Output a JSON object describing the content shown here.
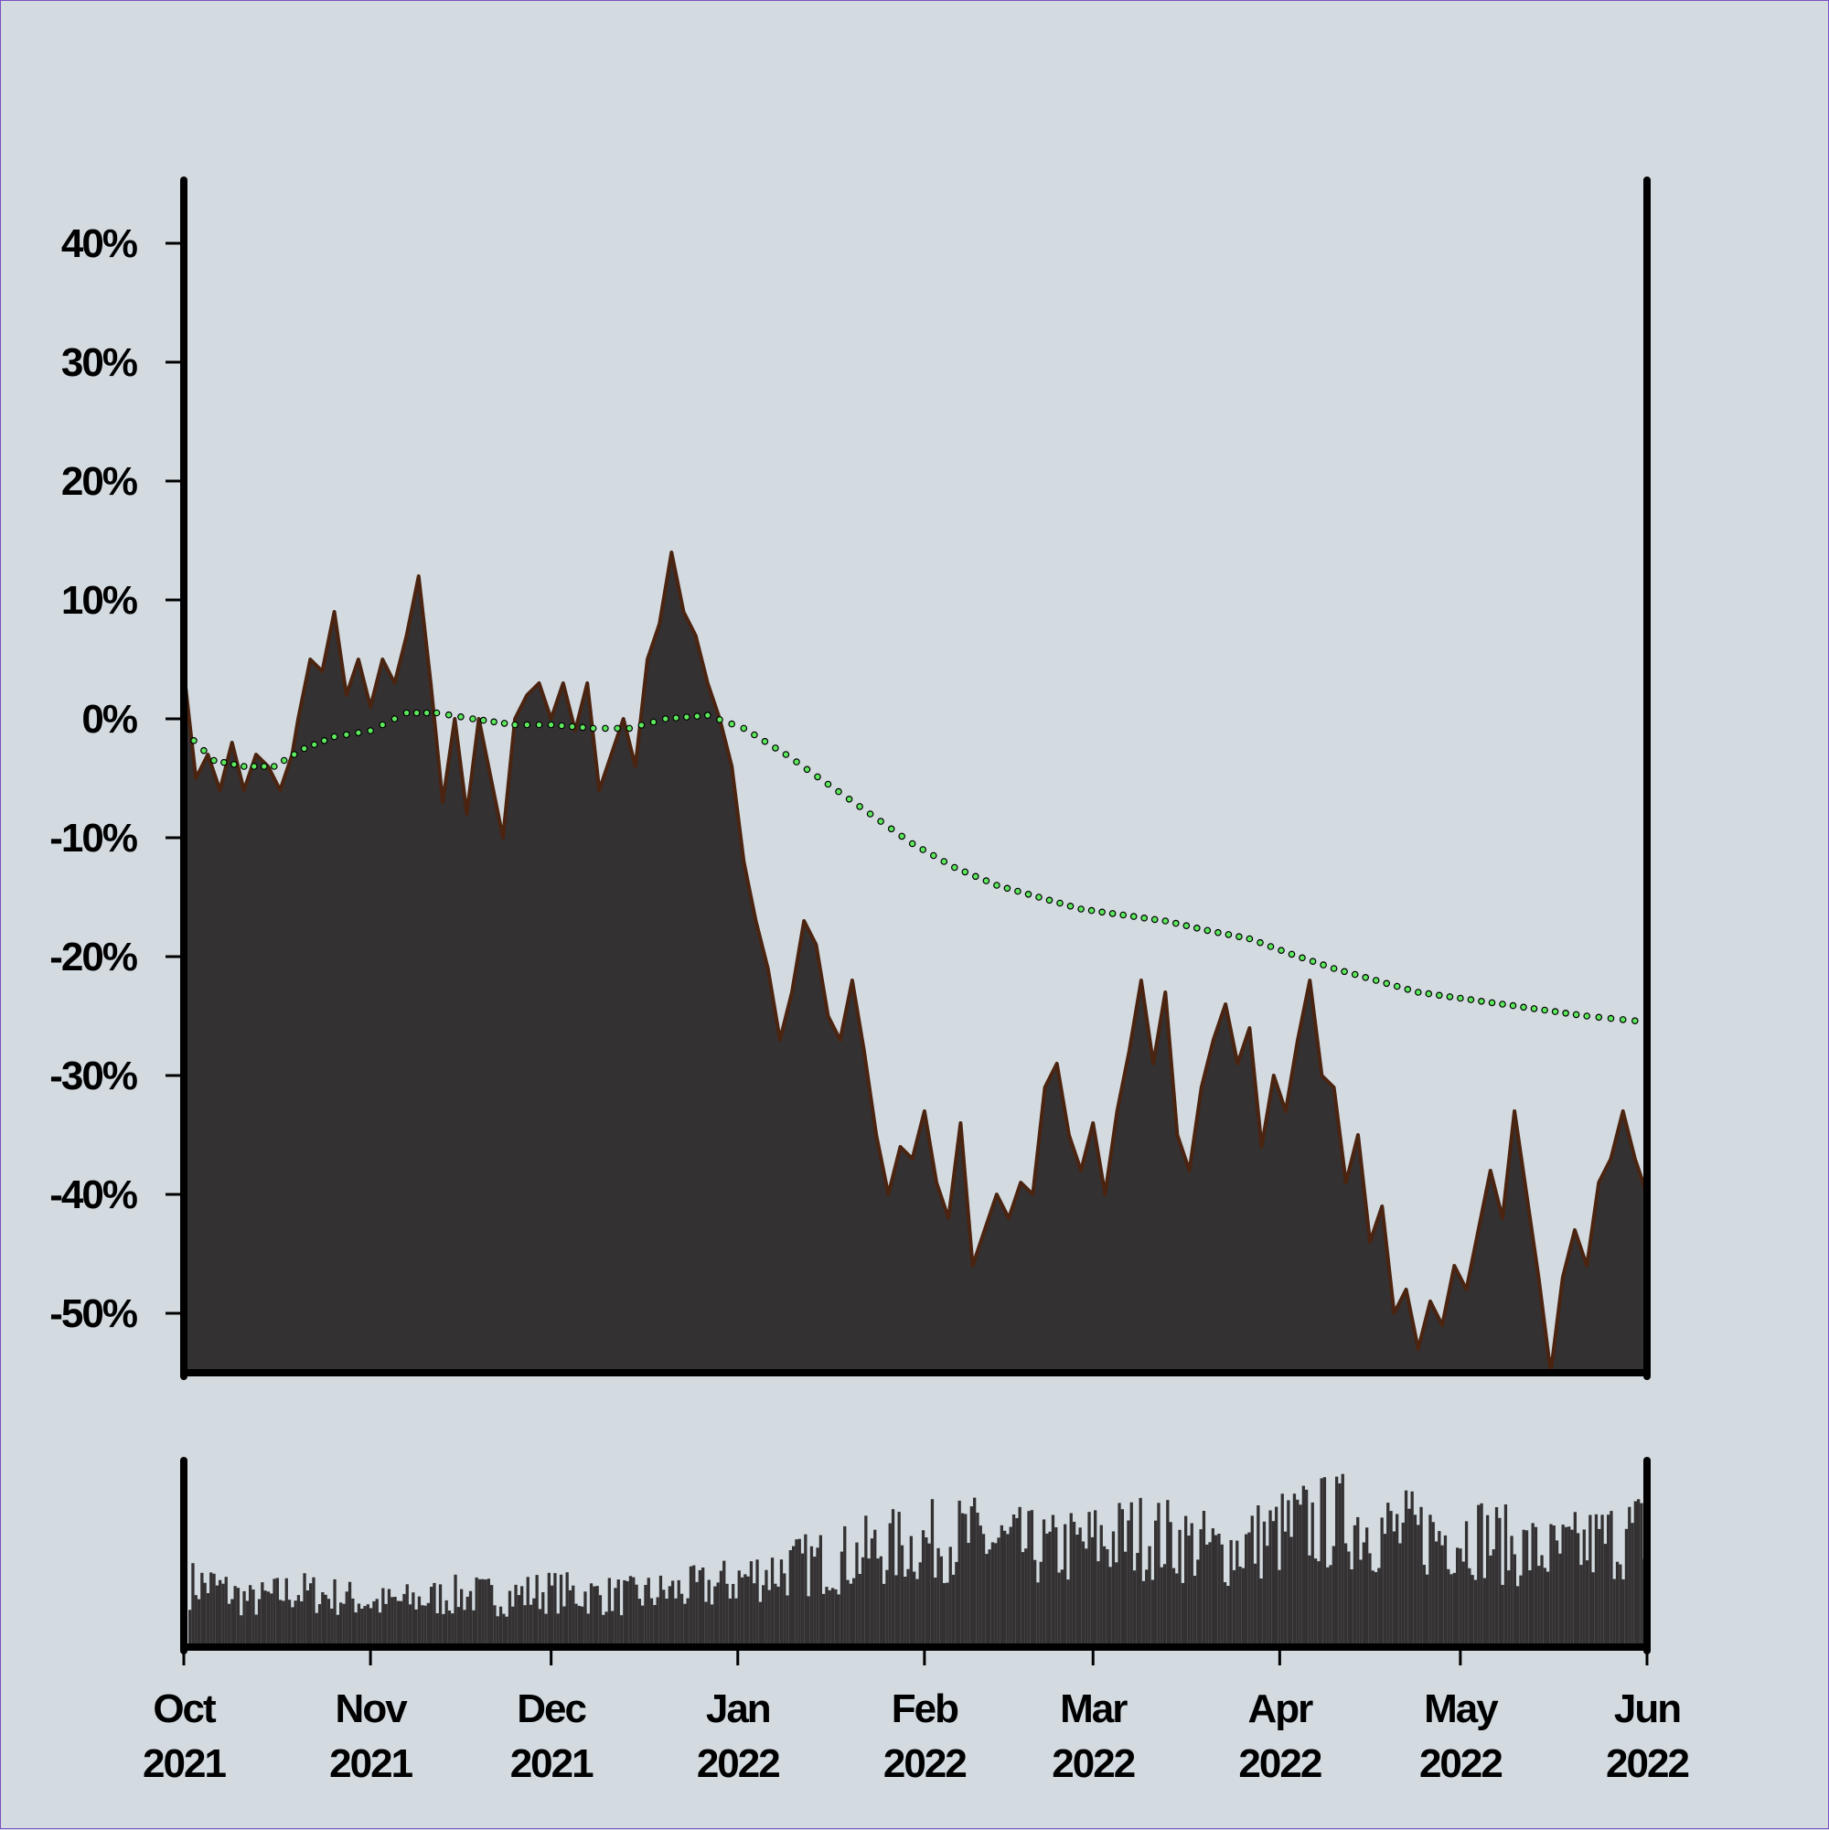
{
  "chart_data": {
    "type": "area",
    "title": "",
    "xlabel": "",
    "ylabel": "",
    "x_range": [
      "2021-10-01",
      "2022-06-01"
    ],
    "ylim": [
      -55,
      45
    ],
    "y_ticks": [
      {
        "value": 40,
        "label": "40%"
      },
      {
        "value": 30,
        "label": "30%"
      },
      {
        "value": 20,
        "label": "20%"
      },
      {
        "value": 10,
        "label": "10%"
      },
      {
        "value": 0,
        "label": "0%"
      },
      {
        "value": -10,
        "label": "-10%"
      },
      {
        "value": -20,
        "label": "-20%"
      },
      {
        "value": -30,
        "label": "-30%"
      },
      {
        "value": -40,
        "label": "-40%"
      },
      {
        "value": -50,
        "label": "-50%"
      }
    ],
    "x_ticks": [
      {
        "date": "2021-10-01",
        "month": "Oct",
        "year": "2021"
      },
      {
        "date": "2021-11-01",
        "month": "Nov",
        "year": "2021"
      },
      {
        "date": "2021-12-01",
        "month": "Dec",
        "year": "2021"
      },
      {
        "date": "2022-01-01",
        "month": "Jan",
        "year": "2022"
      },
      {
        "date": "2022-02-01",
        "month": "Feb",
        "year": "2022"
      },
      {
        "date": "2022-03-01",
        "month": "Mar",
        "year": "2022"
      },
      {
        "date": "2022-04-01",
        "month": "Apr",
        "year": "2022"
      },
      {
        "date": "2022-05-01",
        "month": "May",
        "year": "2022"
      },
      {
        "date": "2022-06-01",
        "month": "Jun",
        "year": "2022"
      }
    ],
    "grid": false,
    "series": [
      {
        "kind": "area",
        "fill_color": "#333132",
        "line_color": "#4a2410",
        "points": [
          [
            "2021-10-01",
            4
          ],
          [
            "2021-10-03",
            -5
          ],
          [
            "2021-10-05",
            -3
          ],
          [
            "2021-10-07",
            -6
          ],
          [
            "2021-10-09",
            -2
          ],
          [
            "2021-10-11",
            -6
          ],
          [
            "2021-10-13",
            -3
          ],
          [
            "2021-10-15",
            -4
          ],
          [
            "2021-10-17",
            -6
          ],
          [
            "2021-10-19",
            -3
          ],
          [
            "2021-10-20",
            0
          ],
          [
            "2021-10-22",
            5
          ],
          [
            "2021-10-24",
            4
          ],
          [
            "2021-10-26",
            9
          ],
          [
            "2021-10-28",
            2
          ],
          [
            "2021-10-30",
            5
          ],
          [
            "2021-11-01",
            1
          ],
          [
            "2021-11-03",
            5
          ],
          [
            "2021-11-05",
            3
          ],
          [
            "2021-11-07",
            7
          ],
          [
            "2021-11-09",
            12
          ],
          [
            "2021-11-11",
            3
          ],
          [
            "2021-11-13",
            -7
          ],
          [
            "2021-11-15",
            0
          ],
          [
            "2021-11-17",
            -8
          ],
          [
            "2021-11-19",
            0
          ],
          [
            "2021-11-21",
            -5
          ],
          [
            "2021-11-23",
            -10
          ],
          [
            "2021-11-25",
            0
          ],
          [
            "2021-11-27",
            2
          ],
          [
            "2021-11-29",
            3
          ],
          [
            "2021-12-01",
            0
          ],
          [
            "2021-12-03",
            3
          ],
          [
            "2021-12-05",
            -1
          ],
          [
            "2021-12-07",
            3
          ],
          [
            "2021-12-09",
            -6
          ],
          [
            "2021-12-11",
            -3
          ],
          [
            "2021-12-13",
            0
          ],
          [
            "2021-12-15",
            -4
          ],
          [
            "2021-12-17",
            5
          ],
          [
            "2021-12-19",
            8
          ],
          [
            "2021-12-21",
            14
          ],
          [
            "2021-12-23",
            9
          ],
          [
            "2021-12-25",
            7
          ],
          [
            "2021-12-27",
            3
          ],
          [
            "2021-12-29",
            0
          ],
          [
            "2021-12-31",
            -4
          ],
          [
            "2022-01-02",
            -12
          ],
          [
            "2022-01-04",
            -17
          ],
          [
            "2022-01-06",
            -21
          ],
          [
            "2022-01-08",
            -27
          ],
          [
            "2022-01-10",
            -23
          ],
          [
            "2022-01-12",
            -17
          ],
          [
            "2022-01-14",
            -19
          ],
          [
            "2022-01-16",
            -25
          ],
          [
            "2022-01-18",
            -27
          ],
          [
            "2022-01-20",
            -22
          ],
          [
            "2022-01-22",
            -28
          ],
          [
            "2022-01-24",
            -35
          ],
          [
            "2022-01-26",
            -40
          ],
          [
            "2022-01-28",
            -36
          ],
          [
            "2022-01-30",
            -37
          ],
          [
            "2022-02-01",
            -33
          ],
          [
            "2022-02-03",
            -39
          ],
          [
            "2022-02-05",
            -42
          ],
          [
            "2022-02-07",
            -34
          ],
          [
            "2022-02-09",
            -46
          ],
          [
            "2022-02-11",
            -43
          ],
          [
            "2022-02-13",
            -40
          ],
          [
            "2022-02-15",
            -42
          ],
          [
            "2022-02-17",
            -39
          ],
          [
            "2022-02-19",
            -40
          ],
          [
            "2022-02-21",
            -31
          ],
          [
            "2022-02-23",
            -29
          ],
          [
            "2022-02-25",
            -35
          ],
          [
            "2022-02-27",
            -38
          ],
          [
            "2022-03-01",
            -34
          ],
          [
            "2022-03-03",
            -40
          ],
          [
            "2022-03-05",
            -33
          ],
          [
            "2022-03-07",
            -28
          ],
          [
            "2022-03-09",
            -22
          ],
          [
            "2022-03-11",
            -29
          ],
          [
            "2022-03-13",
            -23
          ],
          [
            "2022-03-15",
            -35
          ],
          [
            "2022-03-17",
            -38
          ],
          [
            "2022-03-19",
            -31
          ],
          [
            "2022-03-21",
            -27
          ],
          [
            "2022-03-23",
            -24
          ],
          [
            "2022-03-25",
            -29
          ],
          [
            "2022-03-27",
            -26
          ],
          [
            "2022-03-29",
            -36
          ],
          [
            "2022-03-31",
            -30
          ],
          [
            "2022-04-02",
            -33
          ],
          [
            "2022-04-04",
            -27
          ],
          [
            "2022-04-06",
            -22
          ],
          [
            "2022-04-08",
            -30
          ],
          [
            "2022-04-10",
            -31
          ],
          [
            "2022-04-12",
            -39
          ],
          [
            "2022-04-14",
            -35
          ],
          [
            "2022-04-16",
            -44
          ],
          [
            "2022-04-18",
            -41
          ],
          [
            "2022-04-20",
            -50
          ],
          [
            "2022-04-22",
            -48
          ],
          [
            "2022-04-24",
            -53
          ],
          [
            "2022-04-26",
            -49
          ],
          [
            "2022-04-28",
            -51
          ],
          [
            "2022-04-30",
            -46
          ],
          [
            "2022-05-02",
            -48
          ],
          [
            "2022-05-04",
            -43
          ],
          [
            "2022-05-06",
            -38
          ],
          [
            "2022-05-08",
            -42
          ],
          [
            "2022-05-10",
            -33
          ],
          [
            "2022-05-12",
            -40
          ],
          [
            "2022-05-14",
            -47
          ],
          [
            "2022-05-16",
            -55
          ],
          [
            "2022-05-18",
            -47
          ],
          [
            "2022-05-20",
            -43
          ],
          [
            "2022-05-22",
            -46
          ],
          [
            "2022-05-24",
            -39
          ],
          [
            "2022-05-26",
            -37
          ],
          [
            "2022-05-28",
            -33
          ],
          [
            "2022-05-30",
            -37
          ],
          [
            "2022-06-01",
            -40
          ]
        ]
      },
      {
        "kind": "dotted-line",
        "color": "#5de85d",
        "points": [
          [
            "2021-10-01",
            -1
          ],
          [
            "2021-10-06",
            -3.5
          ],
          [
            "2021-10-11",
            -4
          ],
          [
            "2021-10-16",
            -4
          ],
          [
            "2021-10-21",
            -2.5
          ],
          [
            "2021-10-26",
            -1.5
          ],
          [
            "2021-11-01",
            -1
          ],
          [
            "2021-11-07",
            0.5
          ],
          [
            "2021-11-12",
            0.5
          ],
          [
            "2021-11-18",
            0
          ],
          [
            "2021-11-25",
            -0.5
          ],
          [
            "2021-12-01",
            -0.5
          ],
          [
            "2021-12-08",
            -0.8
          ],
          [
            "2021-12-14",
            -0.8
          ],
          [
            "2021-12-20",
            0
          ],
          [
            "2021-12-27",
            0.3
          ],
          [
            "2022-01-02",
            -0.8
          ],
          [
            "2022-01-09",
            -3
          ],
          [
            "2022-01-16",
            -5.5
          ],
          [
            "2022-01-23",
            -8
          ],
          [
            "2022-01-30",
            -10.5
          ],
          [
            "2022-02-06",
            -12.5
          ],
          [
            "2022-02-13",
            -14
          ],
          [
            "2022-02-20",
            -15
          ],
          [
            "2022-02-27",
            -16
          ],
          [
            "2022-03-06",
            -16.5
          ],
          [
            "2022-03-13",
            -17
          ],
          [
            "2022-03-20",
            -17.8
          ],
          [
            "2022-03-27",
            -18.5
          ],
          [
            "2022-04-03",
            -19.8
          ],
          [
            "2022-04-10",
            -21
          ],
          [
            "2022-04-17",
            -22
          ],
          [
            "2022-04-24",
            -23
          ],
          [
            "2022-05-01",
            -23.5
          ],
          [
            "2022-05-08",
            -24
          ],
          [
            "2022-05-15",
            -24.5
          ],
          [
            "2022-05-22",
            -25
          ],
          [
            "2022-06-01",
            -25.5
          ]
        ]
      },
      {
        "kind": "volume-bars",
        "fill_color": "#333132",
        "points": [
          [
            "2021-10-05",
            0.37
          ],
          [
            "2021-10-12",
            0.27
          ],
          [
            "2021-10-19",
            0.33
          ],
          [
            "2021-10-26",
            0.3
          ],
          [
            "2021-11-02",
            0.26
          ],
          [
            "2021-11-09",
            0.28
          ],
          [
            "2021-11-16",
            0.31
          ],
          [
            "2021-11-23",
            0.3
          ],
          [
            "2021-11-30",
            0.33
          ],
          [
            "2021-12-07",
            0.31
          ],
          [
            "2021-12-14",
            0.3
          ],
          [
            "2021-12-21",
            0.33
          ],
          [
            "2021-12-28",
            0.36
          ],
          [
            "2022-01-04",
            0.43
          ],
          [
            "2022-01-11",
            0.48
          ],
          [
            "2022-01-18",
            0.52
          ],
          [
            "2022-01-25",
            0.58
          ],
          [
            "2022-02-01",
            0.62
          ],
          [
            "2022-02-08",
            0.65
          ],
          [
            "2022-02-15",
            0.6
          ],
          [
            "2022-02-22",
            0.57
          ],
          [
            "2022-03-01",
            0.62
          ],
          [
            "2022-03-08",
            0.66
          ],
          [
            "2022-03-15",
            0.63
          ],
          [
            "2022-03-22",
            0.56
          ],
          [
            "2022-03-29",
            0.64
          ],
          [
            "2022-04-05",
            0.72
          ],
          [
            "2022-04-12",
            0.75
          ],
          [
            "2022-04-19",
            0.68
          ],
          [
            "2022-04-26",
            0.66
          ],
          [
            "2022-05-03",
            0.67
          ],
          [
            "2022-05-10",
            0.58
          ],
          [
            "2022-05-17",
            0.55
          ],
          [
            "2022-05-24",
            0.62
          ],
          [
            "2022-05-31",
            0.68
          ]
        ]
      }
    ]
  }
}
